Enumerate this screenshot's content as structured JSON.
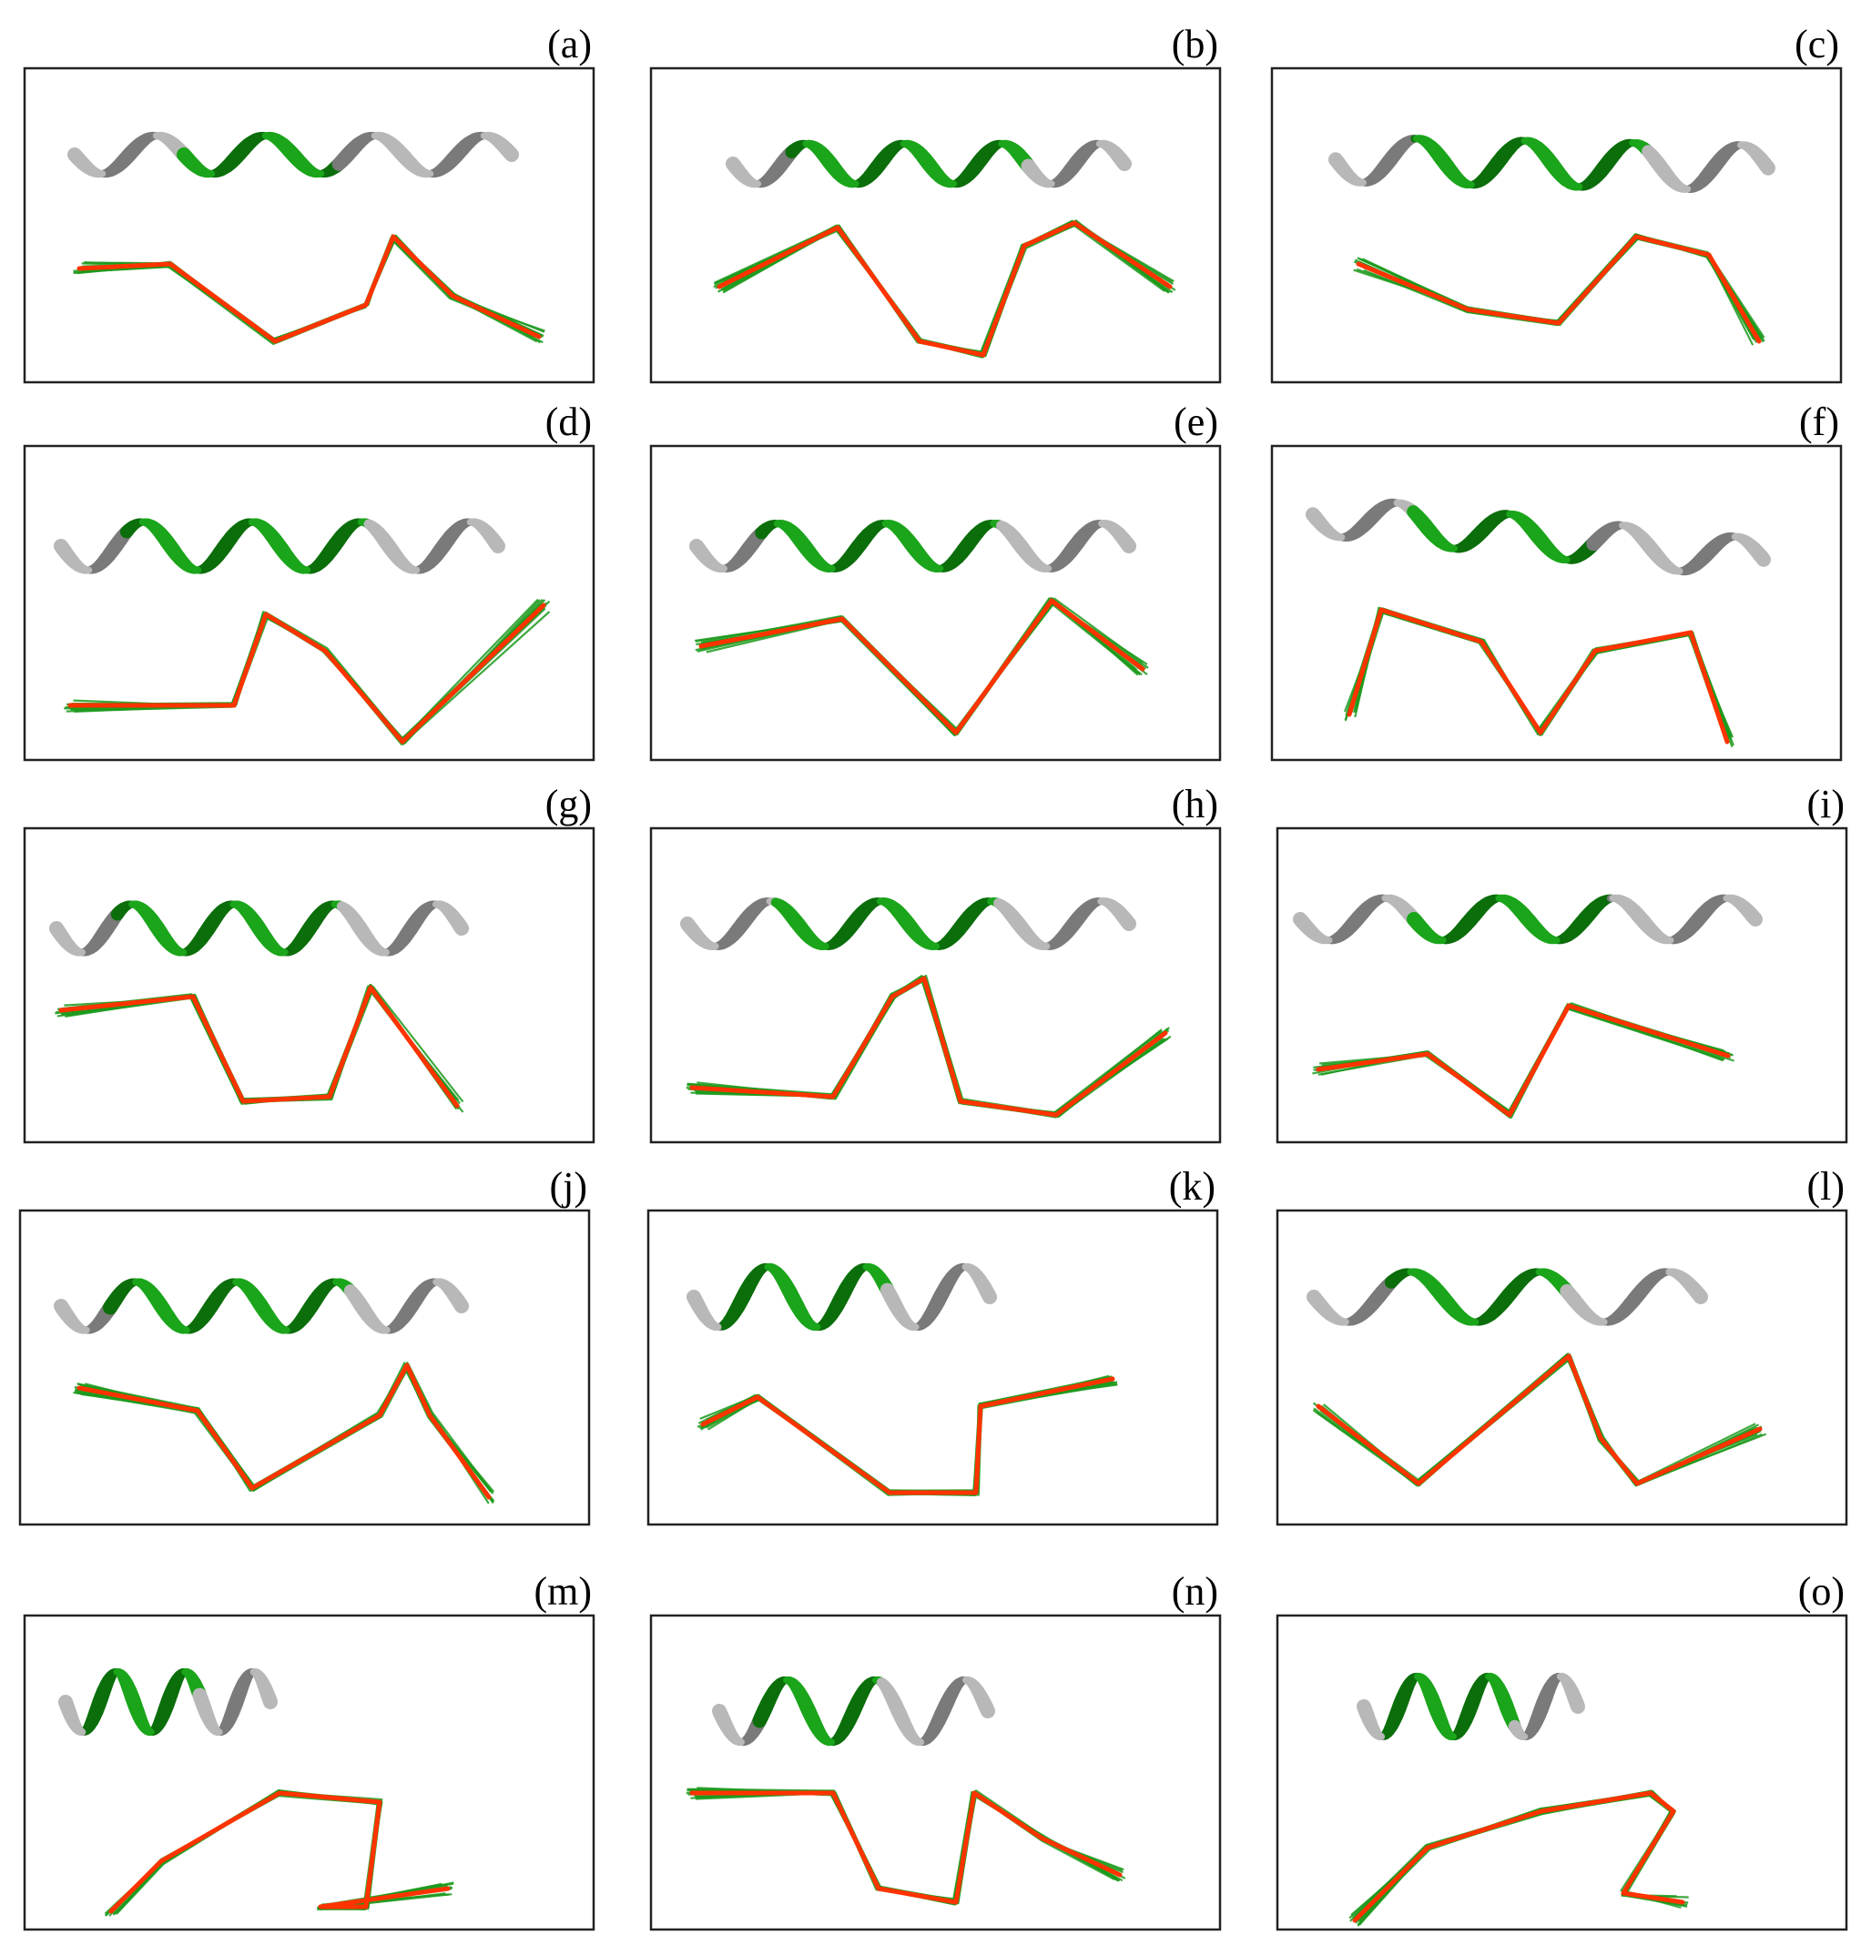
{
  "figure": {
    "colors": {
      "helix_core": "#1aa51a",
      "helix_core_dark": "#0b6e0b",
      "helix_terminal": "#b8b8b8",
      "helix_terminal_dark": "#7a7a7a",
      "trace_ensemble": "#1c9a1c",
      "trace_reference": "#ff3300",
      "frame": "#222222"
    },
    "panels": [
      {
        "label": "(a)"
      },
      {
        "label": "(b)"
      },
      {
        "label": "(c)"
      },
      {
        "label": "(d)"
      },
      {
        "label": "(e)"
      },
      {
        "label": "(f)"
      },
      {
        "label": "(g)"
      },
      {
        "label": "(h)"
      },
      {
        "label": "(i)"
      },
      {
        "label": "(j)"
      },
      {
        "label": "(k)"
      },
      {
        "label": "(l)"
      },
      {
        "label": "(m)"
      },
      {
        "label": "(n)"
      },
      {
        "label": "(o)"
      }
    ]
  }
}
